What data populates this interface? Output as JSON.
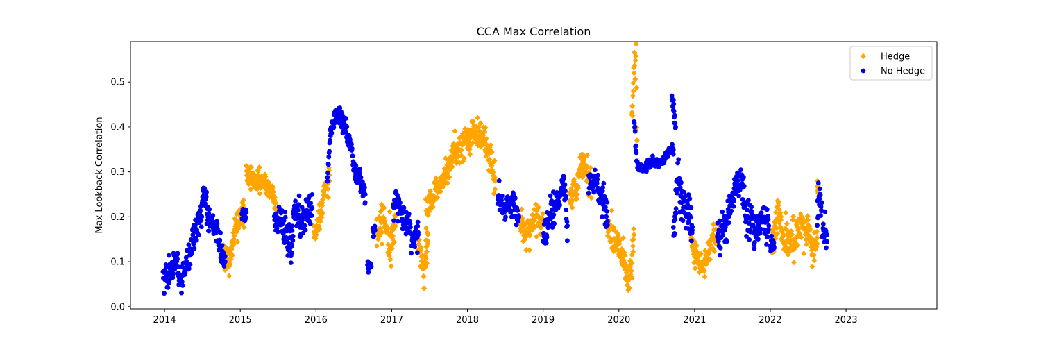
{
  "chart_data": {
    "type": "scatter",
    "title": "CCA Max Correlation",
    "xlabel": "",
    "ylabel": "Max Lookback Correlation",
    "xlim": [
      2013.55,
      2024.2
    ],
    "ylim": [
      -0.005,
      0.59
    ],
    "grid": false,
    "legend_position": "top-right",
    "x_ticks": [
      {
        "value": 2014.0,
        "label": "2014"
      },
      {
        "value": 2015.0,
        "label": "2015"
      },
      {
        "value": 2016.0,
        "label": "2016"
      },
      {
        "value": 2017.0,
        "label": "2017"
      },
      {
        "value": 2018.0,
        "label": "2018"
      },
      {
        "value": 2019.0,
        "label": "2019"
      },
      {
        "value": 2020.0,
        "label": "2020"
      },
      {
        "value": 2021.0,
        "label": "2021"
      },
      {
        "value": 2022.0,
        "label": "2022"
      },
      {
        "value": 2023.0,
        "label": "2023"
      }
    ],
    "y_ticks": [
      {
        "value": 0.0,
        "label": "0.0"
      },
      {
        "value": 0.1,
        "label": "0.1"
      },
      {
        "value": 0.2,
        "label": "0.2"
      },
      {
        "value": 0.3,
        "label": "0.3"
      },
      {
        "value": 0.4,
        "label": "0.4"
      },
      {
        "value": 0.5,
        "label": "0.5"
      }
    ],
    "series": [
      {
        "name": "Hedge",
        "color": "#ffa500",
        "marker": "diamond",
        "segments": [
          {
            "anchors": [
              [
                2014.78,
                0.12
              ],
              [
                2014.85,
                0.1
              ],
              [
                2014.95,
                0.18
              ],
              [
                2015.05,
                0.22
              ]
            ],
            "noise": 0.018
          },
          {
            "anchors": [
              [
                2015.08,
                0.29
              ],
              [
                2015.25,
                0.28
              ],
              [
                2015.4,
                0.26
              ],
              [
                2015.47,
                0.23
              ]
            ],
            "noise": 0.012
          },
          {
            "anchors": [
              [
                2015.97,
                0.16
              ],
              [
                2016.05,
                0.2
              ],
              [
                2016.12,
                0.26
              ],
              [
                2016.18,
                0.28
              ]
            ],
            "noise": 0.015
          },
          {
            "anchors": [
              [
                2016.8,
                0.16
              ],
              [
                2016.9,
                0.2
              ],
              [
                2016.97,
                0.14
              ],
              [
                2017.05,
                0.18
              ]
            ],
            "noise": 0.022
          },
          {
            "anchors": [
              [
                2017.35,
                0.14
              ],
              [
                2017.42,
                0.09
              ],
              [
                2017.48,
                0.14
              ]
            ],
            "noise": 0.02
          },
          {
            "anchors": [
              [
                2017.45,
                0.22
              ],
              [
                2017.6,
                0.26
              ],
              [
                2017.75,
                0.31
              ],
              [
                2017.85,
                0.35
              ],
              [
                2018.0,
                0.37
              ],
              [
                2018.1,
                0.39
              ],
              [
                2018.2,
                0.38
              ],
              [
                2018.3,
                0.33
              ],
              [
                2018.37,
                0.28
              ]
            ],
            "noise": 0.016
          },
          {
            "anchors": [
              [
                2018.7,
                0.18
              ],
              [
                2018.8,
                0.17
              ],
              [
                2018.92,
                0.2
              ],
              [
                2019.0,
                0.19
              ]
            ],
            "noise": 0.018
          },
          {
            "anchors": [
              [
                2019.35,
                0.24
              ],
              [
                2019.45,
                0.27
              ],
              [
                2019.52,
                0.32
              ],
              [
                2019.58,
                0.29
              ],
              [
                2019.65,
                0.27
              ]
            ],
            "noise": 0.018
          },
          {
            "anchors": [
              [
                2019.85,
                0.18
              ],
              [
                2019.95,
                0.15
              ],
              [
                2020.05,
                0.12
              ],
              [
                2020.12,
                0.06
              ],
              [
                2020.17,
                0.1
              ],
              [
                2020.2,
                0.16
              ]
            ],
            "noise": 0.018
          },
          {
            "anchors": [
              [
                2020.17,
                0.42
              ],
              [
                2020.2,
                0.52
              ],
              [
                2020.23,
                0.56
              ],
              [
                2020.24,
                0.37
              ]
            ],
            "noise": 0.02
          },
          {
            "anchors": [
              [
                2020.95,
                0.14
              ],
              [
                2021.02,
                0.11
              ],
              [
                2021.08,
                0.09
              ],
              [
                2021.15,
                0.11
              ],
              [
                2021.25,
                0.15
              ],
              [
                2021.33,
                0.17
              ]
            ],
            "noise": 0.015
          },
          {
            "anchors": [
              [
                2022.02,
                0.16
              ],
              [
                2022.1,
                0.2
              ],
              [
                2022.2,
                0.15
              ],
              [
                2022.3,
                0.14
              ],
              [
                2022.4,
                0.18
              ],
              [
                2022.5,
                0.17
              ],
              [
                2022.55,
                0.13
              ],
              [
                2022.62,
                0.14
              ]
            ],
            "noise": 0.02
          },
          {
            "anchors": [
              [
                2022.62,
                0.27
              ],
              [
                2022.65,
                0.24
              ]
            ],
            "noise": 0.01
          }
        ]
      },
      {
        "name": "No Hedge",
        "color": "#0000ee",
        "marker": "circle",
        "segments": [
          {
            "anchors": [
              [
                2013.98,
                0.08
              ],
              [
                2014.05,
                0.07
              ],
              [
                2014.15,
                0.1
              ],
              [
                2014.22,
                0.06
              ],
              [
                2014.3,
                0.1
              ],
              [
                2014.4,
                0.16
              ],
              [
                2014.48,
                0.2
              ],
              [
                2014.52,
                0.26
              ],
              [
                2014.58,
                0.19
              ],
              [
                2014.68,
                0.17
              ],
              [
                2014.76,
                0.12
              ],
              [
                2014.8,
                0.1
              ]
            ],
            "noise": 0.015
          },
          {
            "anchors": [
              [
                2015.02,
                0.2
              ],
              [
                2015.08,
                0.21
              ]
            ],
            "noise": 0.01
          },
          {
            "anchors": [
              [
                2015.45,
                0.2
              ],
              [
                2015.55,
                0.19
              ],
              [
                2015.62,
                0.16
              ],
              [
                2015.67,
                0.13
              ],
              [
                2015.72,
                0.22
              ],
              [
                2015.8,
                0.19
              ],
              [
                2015.88,
                0.21
              ],
              [
                2015.95,
                0.22
              ]
            ],
            "noise": 0.018
          },
          {
            "anchors": [
              [
                2016.15,
                0.28
              ],
              [
                2016.2,
                0.4
              ],
              [
                2016.27,
                0.43
              ],
              [
                2016.35,
                0.41
              ],
              [
                2016.45,
                0.37
              ],
              [
                2016.52,
                0.3
              ],
              [
                2016.6,
                0.27
              ],
              [
                2016.65,
                0.25
              ]
            ],
            "noise": 0.012
          },
          {
            "anchors": [
              [
                2016.68,
                0.09
              ],
              [
                2016.73,
                0.09
              ]
            ],
            "noise": 0.006
          },
          {
            "anchors": [
              [
                2016.75,
                0.16
              ],
              [
                2016.78,
                0.17
              ]
            ],
            "noise": 0.006
          },
          {
            "anchors": [
              [
                2017.02,
                0.22
              ],
              [
                2017.08,
                0.24
              ],
              [
                2017.15,
                0.2
              ],
              [
                2017.22,
                0.18
              ],
              [
                2017.3,
                0.14
              ],
              [
                2017.35,
                0.16
              ]
            ],
            "noise": 0.018
          },
          {
            "anchors": [
              [
                2018.4,
                0.24
              ],
              [
                2018.5,
                0.22
              ],
              [
                2018.6,
                0.23
              ],
              [
                2018.68,
                0.2
              ]
            ],
            "noise": 0.015
          },
          {
            "anchors": [
              [
                2019.0,
                0.17
              ],
              [
                2019.1,
                0.2
              ],
              [
                2019.2,
                0.24
              ],
              [
                2019.28,
                0.26
              ],
              [
                2019.32,
                0.18
              ]
            ],
            "noise": 0.018
          },
          {
            "anchors": [
              [
                2019.6,
                0.27
              ],
              [
                2019.7,
                0.28
              ],
              [
                2019.78,
                0.24
              ],
              [
                2019.85,
                0.19
              ]
            ],
            "noise": 0.015
          },
          {
            "anchors": [
              [
                2020.2,
                0.4
              ],
              [
                2020.25,
                0.31
              ],
              [
                2020.35,
                0.31
              ],
              [
                2020.45,
                0.32
              ],
              [
                2020.55,
                0.32
              ],
              [
                2020.65,
                0.34
              ],
              [
                2020.72,
                0.35
              ]
            ],
            "noise": 0.006
          },
          {
            "anchors": [
              [
                2020.7,
                0.47
              ],
              [
                2020.72,
                0.45
              ],
              [
                2020.75,
                0.4
              ]
            ],
            "noise": 0.008
          },
          {
            "anchors": [
              [
                2020.72,
                0.2
              ],
              [
                2020.78,
                0.28
              ],
              [
                2020.85,
                0.24
              ],
              [
                2020.92,
                0.2
              ],
              [
                2020.97,
                0.17
              ]
            ],
            "noise": 0.022
          },
          {
            "anchors": [
              [
                2021.3,
                0.15
              ],
              [
                2021.4,
                0.18
              ],
              [
                2021.48,
                0.22
              ],
              [
                2021.55,
                0.27
              ],
              [
                2021.62,
                0.28
              ],
              [
                2021.68,
                0.2
              ],
              [
                2021.75,
                0.19
              ],
              [
                2021.82,
                0.17
              ],
              [
                2021.9,
                0.2
              ],
              [
                2021.98,
                0.18
              ]
            ],
            "noise": 0.02
          },
          {
            "anchors": [
              [
                2022.0,
                0.14
              ],
              [
                2022.05,
                0.13
              ]
            ],
            "noise": 0.008
          },
          {
            "anchors": [
              [
                2022.62,
                0.21
              ],
              [
                2022.65,
                0.25
              ],
              [
                2022.7,
                0.18
              ],
              [
                2022.75,
                0.16
              ]
            ],
            "noise": 0.02
          }
        ]
      }
    ]
  }
}
